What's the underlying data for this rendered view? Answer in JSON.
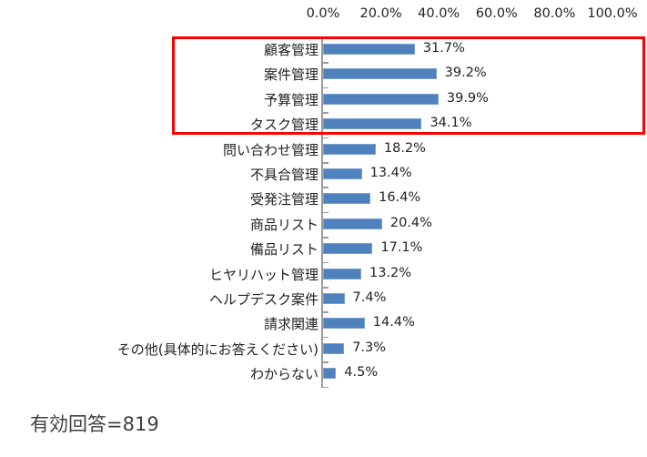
{
  "chart_data": {
    "type": "bar",
    "orientation": "horizontal",
    "title": "",
    "xlabel": "",
    "ylabel": "",
    "xlim": [
      0,
      100
    ],
    "x_ticks": [
      "0.0%",
      "20.0%",
      "40.0%",
      "60.0%",
      "80.0%",
      "100.0%"
    ],
    "x_axis_position": "top",
    "grid": false,
    "legend": null,
    "categories": [
      "顧客管理",
      "案件管理",
      "予算管理",
      "タスク管理",
      "問い合わせ管理",
      "不具合管理",
      "受発注管理",
      "商品リスト",
      "備品リスト",
      "ヒヤリハット管理",
      "ヘルプデスク案件",
      "請求関連",
      "その他(具体的にお答えください)",
      "わからない"
    ],
    "values": [
      31.7,
      39.2,
      39.9,
      34.1,
      18.2,
      13.4,
      16.4,
      20.4,
      17.1,
      13.2,
      7.4,
      14.4,
      7.3,
      4.5
    ],
    "value_labels": [
      "31.7%",
      "39.2%",
      "39.9%",
      "34.1%",
      "18.2%",
      "13.4%",
      "16.4%",
      "20.4%",
      "17.1%",
      "13.2%",
      "7.4%",
      "14.4%",
      "7.3%",
      "4.5%"
    ],
    "bar_color": "#4f81bd",
    "highlight": {
      "categories": [
        "顧客管理",
        "案件管理",
        "予算管理",
        "タスク管理"
      ],
      "color": "#ff0000"
    },
    "annotation": "有効回答=819"
  },
  "footer": {
    "sample_size_label": "有効回答=819"
  }
}
